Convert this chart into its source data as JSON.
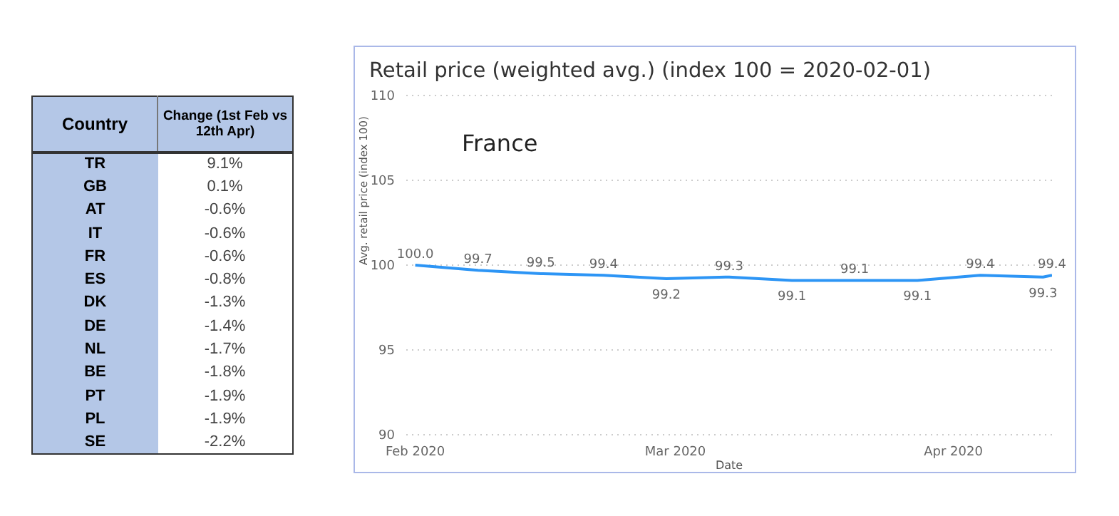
{
  "chart_data": [
    {
      "type": "other",
      "xlabel": "Country",
      "ylabel": "Change (1st Feb vs 12th Apr)",
      "categories": [
        "TR",
        "GB",
        "AT",
        "IT",
        "FR",
        "ES",
        "DK",
        "DE",
        "NL",
        "BE",
        "PT",
        "PL",
        "SE"
      ],
      "value_labels": [
        "9.1%",
        "0.1%",
        "-0.6%",
        "-0.6%",
        "-0.6%",
        "-0.8%",
        "-1.3%",
        "-1.4%",
        "-1.7%",
        "-1.8%",
        "-1.9%",
        "-1.9%",
        "-2.2%"
      ],
      "color": "#b4c7e7"
    },
    {
      "type": "line",
      "title": "Retail price (weighted avg.) (index 100 = 2020-02-01)",
      "xlabel": "Date",
      "ylabel": "Avg. retail price (index 100)",
      "annotations": [
        "France"
      ],
      "x": [
        "2020-02-01",
        "2020-02-08",
        "2020-02-15",
        "2020-02-22",
        "2020-02-29",
        "2020-03-07",
        "2020-03-14",
        "2020-03-21",
        "2020-03-28",
        "2020-04-04",
        "2020-04-11",
        "2020-04-12"
      ],
      "series": [
        {
          "color": "#2d95f5",
          "values": [
            100.0,
            99.7,
            99.5,
            99.4,
            99.2,
            99.3,
            99.1,
            99.1,
            99.1,
            99.4,
            99.3,
            99.4
          ],
          "value_labels": [
            "100.0",
            "99.7",
            "99.5",
            "99.4",
            "99.2",
            "99.3",
            "99.1",
            "99.1",
            "99.1",
            "99.4",
            "99.3",
            "99.4"
          ]
        }
      ],
      "xlim": [
        "2020-01-31",
        "2020-04-12"
      ],
      "xticks": [
        {
          "value": "2020-02-01",
          "label": "Feb 2020"
        },
        {
          "value": "2020-03-01",
          "label": "Mar 2020"
        },
        {
          "value": "2020-04-01",
          "label": "Apr 2020"
        }
      ],
      "ylim": [
        90,
        110
      ],
      "yticks": [
        90,
        95,
        100,
        105,
        110
      ],
      "grid": "y",
      "marker": "none",
      "line_style": "solid"
    }
  ]
}
